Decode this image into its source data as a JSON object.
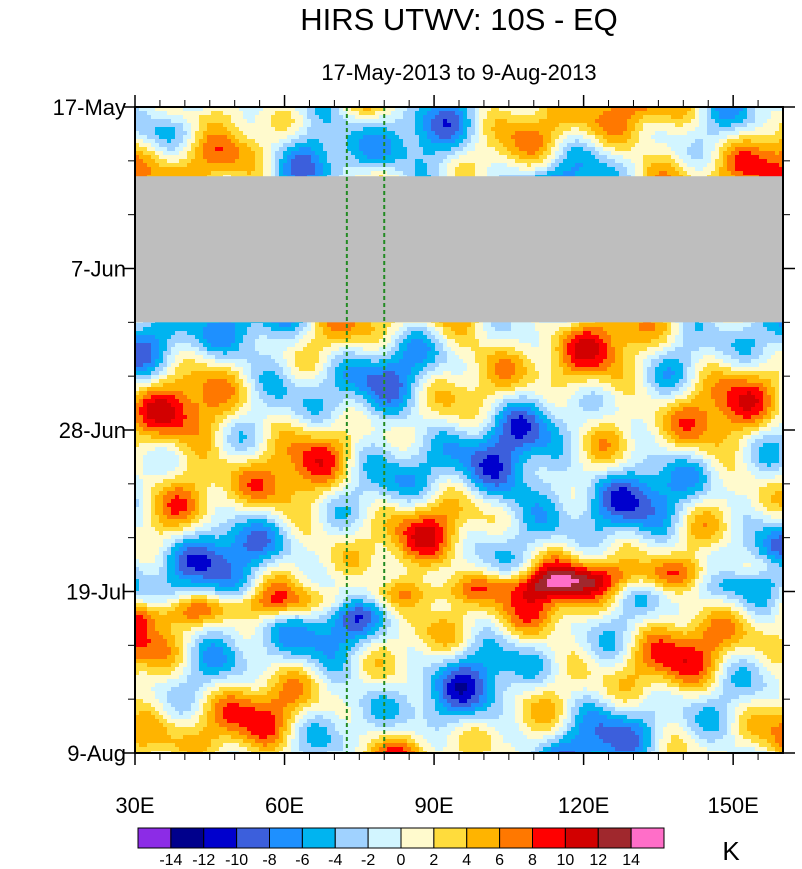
{
  "chart_data": {
    "type": "heatmap",
    "title": "HIRS UTWV: 10S - EQ",
    "subtitle": "17-May-2013 to 9-Aug-2013",
    "x_axis": {
      "range": [
        30,
        160
      ],
      "ticks": [
        30,
        60,
        90,
        120,
        150
      ],
      "tick_labels": [
        "30E",
        "60E",
        "90E",
        "120E",
        "150E"
      ],
      "minor_ticks": [
        35,
        40,
        45,
        50,
        55,
        65,
        70,
        75,
        80,
        85,
        95,
        100,
        105,
        110,
        115,
        125,
        130,
        135,
        140,
        145,
        155
      ]
    },
    "y_axis": {
      "range_days": [
        0,
        84
      ],
      "ticks_days": [
        0,
        21,
        42,
        63,
        84
      ],
      "tick_labels": [
        "17-May",
        "7-Jun",
        "28-Jun",
        "19-Jul",
        "9-Aug"
      ],
      "minor_ticks_days": [
        7,
        14,
        28,
        35,
        49,
        56,
        70,
        77
      ]
    },
    "missing_data_days": [
      9,
      28
    ],
    "reference_lines_lon": [
      72.5,
      80
    ],
    "colorbar": {
      "units": "K",
      "levels": [
        -14,
        -12,
        -10,
        -8,
        -6,
        -4,
        -2,
        0,
        2,
        4,
        6,
        8,
        10,
        12,
        14
      ],
      "labels": [
        "-14",
        "-12",
        "-10",
        "-8",
        "-6",
        "-4",
        "-2",
        "0",
        "2",
        "4",
        "6",
        "8",
        "10",
        "12",
        "14"
      ],
      "colors": [
        "#8C2CE6",
        "#00008C",
        "#0000CD",
        "#3C5FDC",
        "#1E90FF",
        "#00B4F0",
        "#A0D2FF",
        "#D2F5FF",
        "#FFFACD",
        "#FFDC3C",
        "#FFB400",
        "#FF7800",
        "#FF0000",
        "#D20000",
        "#A0282D",
        "#FF6EC8"
      ]
    },
    "missing_color": "#BEBEBE",
    "line_color": "#228B22"
  }
}
